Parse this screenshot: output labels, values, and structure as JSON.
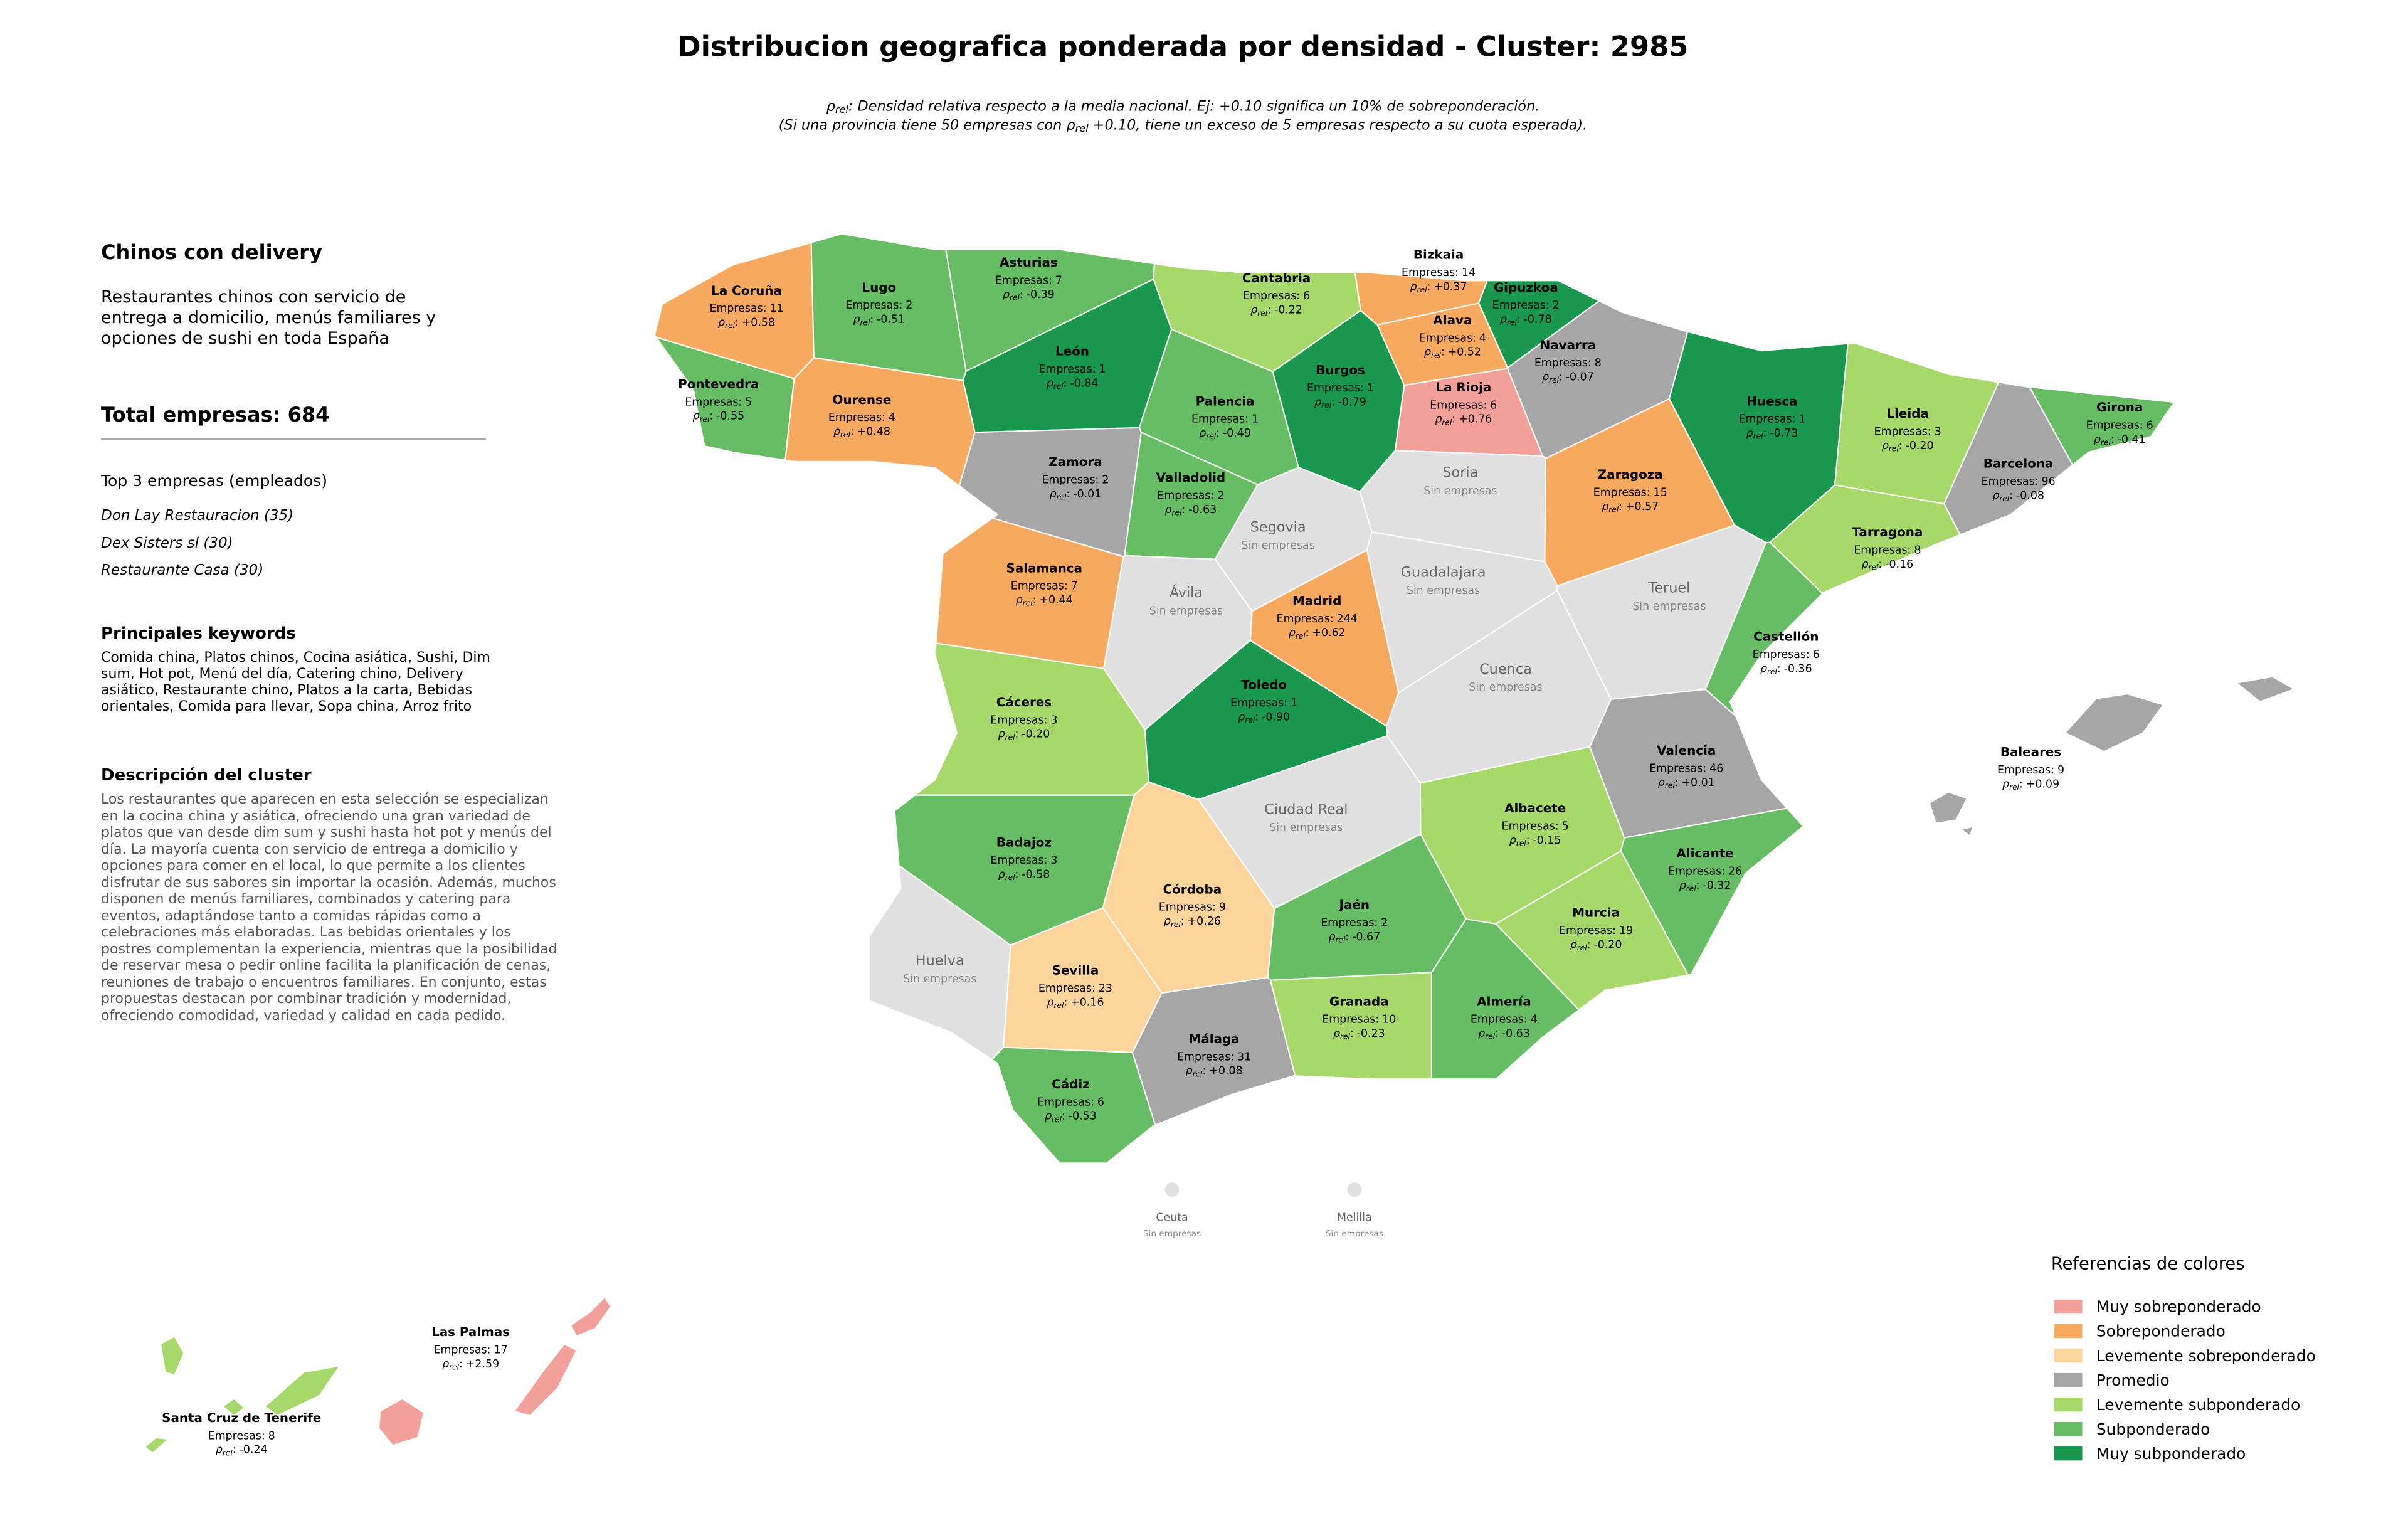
{
  "title": "Distribucion geografica ponderada por densidad - Cluster: 2985",
  "subtitle": {
    "line1": ": Densidad relativa respecto a la media nacional. Ej: +0.10 significa un 10% de sobreponderación.",
    "line2_before": "(Si una provincia tiene 50 empresas con ",
    "line2_after": " +0.10, tiene un exceso de 5 empresas respecto a su cuota esperada)."
  },
  "sidebar": {
    "cluster_name": "Chinos con delivery",
    "cluster_summary": "Restaurantes chinos con servicio de entrega a domicilio, menús familiares y opciones de sushi en toda España",
    "total_label": "Total empresas:",
    "total": 684,
    "top_heading": "Top 3 empresas (empleados)",
    "top_companies": [
      "Don Lay Restauracion (35)",
      "Dex Sisters sl (30)",
      "Restaurante Casa (30)"
    ],
    "keywords_heading": "Principales keywords",
    "keywords": "Comida china, Platos chinos, Cocina asiática, Sushi, Dim sum, Hot pot, Menú del día, Catering chino, Delivery asiático, Restaurante chino, Platos a la carta, Bebidas orientales, Comida para llevar, Sopa china, Arroz frito",
    "description_heading": "Descripción del cluster",
    "description": "Los restaurantes que aparecen en esta selección se especializan en la cocina china y asiática, ofreciendo una gran variedad de platos que van desde dim sum y sushi hasta hot pot y menús del día. La mayoría cuenta con servicio de entrega a domicilio y opciones para comer en el local, lo que permite a los clientes disfrutar de sus sabores sin importar la ocasión. Además, muchos disponen de menús familiares, combinados y catering para eventos, adaptándose tanto a comidas rápidas como a celebraciones más elaboradas. Las bebidas orientales y los postres complementan la experiencia, mientras que la posibilidad de reservar mesa o pedir online facilita la planificación de cenas, reuniones de trabajo o encuentros familiares. En conjunto, estas propuestas destacan por combinar tradición y modernidad, ofreciendo comodidad, variedad y calidad en cada pedido."
  },
  "map": {
    "companies_prefix": "Empresas:",
    "rho_symbol": "ρ",
    "rho_sub": "rel",
    "rho_suffix": ":",
    "no_companies": "Sin empresas",
    "empty_color": "#e0e0e0",
    "provinces": [
      {
        "name": "La Coruña",
        "companies": 11,
        "rho": 0.58,
        "rho_label": "+0.58",
        "class": 1
      },
      {
        "name": "Lugo",
        "companies": 2,
        "rho": -0.51,
        "rho_label": "-0.51",
        "class": 5
      },
      {
        "name": "Asturias",
        "companies": 7,
        "rho": -0.39,
        "rho_label": "-0.39",
        "class": 5
      },
      {
        "name": "Cantabria",
        "companies": 6,
        "rho": -0.22,
        "rho_label": "-0.22",
        "class": 4
      },
      {
        "name": "Bizkaia",
        "companies": 14,
        "rho": 0.37,
        "rho_label": "+0.37",
        "class": 1
      },
      {
        "name": "Gipuzkoa",
        "companies": 2,
        "rho": -0.78,
        "rho_label": "-0.78",
        "class": 6
      },
      {
        "name": "Alava",
        "companies": 4,
        "rho": 0.52,
        "rho_label": "+0.52",
        "class": 1
      },
      {
        "name": "Navarra",
        "companies": 8,
        "rho": -0.07,
        "rho_label": "-0.07",
        "class": 3
      },
      {
        "name": "La Rioja",
        "companies": 6,
        "rho": 0.76,
        "rho_label": "+0.76",
        "class": 0
      },
      {
        "name": "Huesca",
        "companies": 1,
        "rho": -0.73,
        "rho_label": "-0.73",
        "class": 6
      },
      {
        "name": "Lleida",
        "companies": 3,
        "rho": -0.2,
        "rho_label": "-0.20",
        "class": 4
      },
      {
        "name": "Girona",
        "companies": 6,
        "rho": -0.41,
        "rho_label": "-0.41",
        "class": 5
      },
      {
        "name": "Barcelona",
        "companies": 96,
        "rho": -0.08,
        "rho_label": "-0.08",
        "class": 3
      },
      {
        "name": "Tarragona",
        "companies": 8,
        "rho": -0.16,
        "rho_label": "-0.16",
        "class": 4
      },
      {
        "name": "Zaragoza",
        "companies": 15,
        "rho": 0.57,
        "rho_label": "+0.57",
        "class": 1
      },
      {
        "name": "Pontevedra",
        "companies": 5,
        "rho": -0.55,
        "rho_label": "-0.55",
        "class": 5
      },
      {
        "name": "Ourense",
        "companies": 4,
        "rho": 0.48,
        "rho_label": "+0.48",
        "class": 1
      },
      {
        "name": "León",
        "companies": 1,
        "rho": -0.84,
        "rho_label": "-0.84",
        "class": 6
      },
      {
        "name": "Palencia",
        "companies": 1,
        "rho": -0.49,
        "rho_label": "-0.49",
        "class": 5
      },
      {
        "name": "Burgos",
        "companies": 1,
        "rho": -0.79,
        "rho_label": "-0.79",
        "class": 6
      },
      {
        "name": "Soria"
      },
      {
        "name": "Zamora",
        "companies": 2,
        "rho": -0.01,
        "rho_label": "-0.01",
        "class": 3
      },
      {
        "name": "Valladolid",
        "companies": 2,
        "rho": -0.63,
        "rho_label": "-0.63",
        "class": 5
      },
      {
        "name": "Segovia"
      },
      {
        "name": "Guadalajara"
      },
      {
        "name": "Teruel"
      },
      {
        "name": "Salamanca",
        "companies": 7,
        "rho": 0.44,
        "rho_label": "+0.44",
        "class": 1
      },
      {
        "name": "Ávila"
      },
      {
        "name": "Madrid",
        "companies": 244,
        "rho": 0.62,
        "rho_label": "+0.62",
        "class": 1
      },
      {
        "name": "Castellón",
        "companies": 6,
        "rho": -0.36,
        "rho_label": "-0.36",
        "class": 5
      },
      {
        "name": "Cáceres",
        "companies": 3,
        "rho": -0.2,
        "rho_label": "-0.20",
        "class": 4
      },
      {
        "name": "Toledo",
        "companies": 1,
        "rho": -0.9,
        "rho_label": "-0.90",
        "class": 6
      },
      {
        "name": "Cuenca"
      },
      {
        "name": "Valencia",
        "companies": 46,
        "rho": 0.01,
        "rho_label": "+0.01",
        "class": 3
      },
      {
        "name": "Baleares",
        "companies": 9,
        "rho": 0.09,
        "rho_label": "+0.09",
        "class": 3
      },
      {
        "name": "Ciudad Real"
      },
      {
        "name": "Albacete",
        "companies": 5,
        "rho": -0.15,
        "rho_label": "-0.15",
        "class": 4
      },
      {
        "name": "Badajoz",
        "companies": 3,
        "rho": -0.58,
        "rho_label": "-0.58",
        "class": 5
      },
      {
        "name": "Alicante",
        "companies": 26,
        "rho": -0.32,
        "rho_label": "-0.32",
        "class": 5
      },
      {
        "name": "Córdoba",
        "companies": 9,
        "rho": 0.26,
        "rho_label": "+0.26",
        "class": 2
      },
      {
        "name": "Jaén",
        "companies": 2,
        "rho": -0.67,
        "rho_label": "-0.67",
        "class": 5
      },
      {
        "name": "Murcia",
        "companies": 19,
        "rho": -0.2,
        "rho_label": "-0.20",
        "class": 4
      },
      {
        "name": "Huelva"
      },
      {
        "name": "Sevilla",
        "companies": 23,
        "rho": 0.16,
        "rho_label": "+0.16",
        "class": 2
      },
      {
        "name": "Granada",
        "companies": 10,
        "rho": -0.23,
        "rho_label": "-0.23",
        "class": 4
      },
      {
        "name": "Almería",
        "companies": 4,
        "rho": -0.63,
        "rho_label": "-0.63",
        "class": 5
      },
      {
        "name": "Málaga",
        "companies": 31,
        "rho": 0.08,
        "rho_label": "+0.08",
        "class": 3
      },
      {
        "name": "Cádiz",
        "companies": 6,
        "rho": -0.53,
        "rho_label": "-0.53",
        "class": 5
      },
      {
        "name": "Ceuta"
      },
      {
        "name": "Melilla"
      },
      {
        "name": "Las Palmas",
        "companies": 17,
        "rho": 2.59,
        "rho_label": "+2.59",
        "class": 0
      },
      {
        "name": "Santa Cruz de Tenerife",
        "companies": 8,
        "rho": -0.24,
        "rho_label": "-0.24",
        "class": 4
      }
    ],
    "legend": {
      "title": "Referencias de colores",
      "classes": [
        {
          "name": "Muy sobreponderado",
          "color": "#f4a09a"
        },
        {
          "name": "Sobreponderado",
          "color": "#f7a95f"
        },
        {
          "name": "Levemente sobreponderado",
          "color": "#fdd49b"
        },
        {
          "name": "Promedio",
          "color": "#a6a6a6"
        },
        {
          "name": "Levemente subponderado",
          "color": "#a6d96a"
        },
        {
          "name": "Subponderado",
          "color": "#66bd63"
        },
        {
          "name": "Muy subponderado",
          "color": "#1a9850"
        }
      ]
    }
  }
}
